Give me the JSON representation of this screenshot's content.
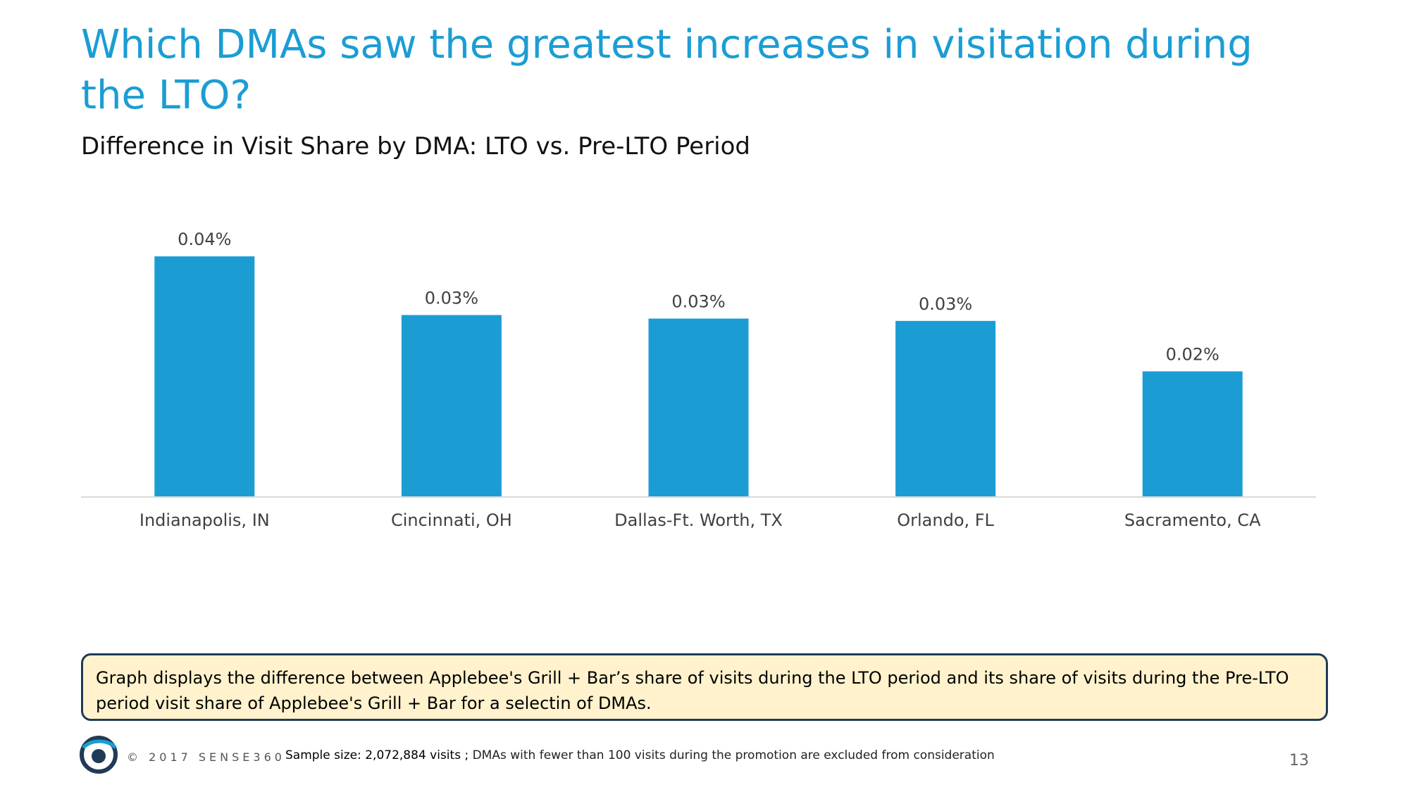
{
  "slide": {
    "title": "Which DMAs saw the greatest increases in visitation during the LTO?",
    "subtitle": "Difference in Visit Share by DMA: LTO vs. Pre-LTO Period",
    "note": "Graph displays the difference between Applebee's Grill + Bar’s share of visits during the LTO period and its share of visits during the Pre-LTO period visit share of Applebee's Grill + Bar for a selectin of DMAs.",
    "copyright": "© 2017 SENSE360",
    "sample_prefix": "Sample size: 2,072,884 visits ;",
    "sample_rest": " DMAs with fewer than 100 visits during the promotion are excluded from consideration",
    "page_number": "13"
  },
  "chart_data": {
    "type": "bar",
    "categories": [
      "Indianapolis, IN",
      "Cincinnati, OH",
      "Dallas-Ft. Worth, TX",
      "Orlando, FL",
      "Sacramento, CA"
    ],
    "values": [
      0.0409,
      0.0309,
      0.0303,
      0.0299,
      0.0213
    ],
    "data_labels": [
      "0.04%",
      "0.03%",
      "0.03%",
      "0.03%",
      "0.02%"
    ],
    "ylim": [
      0,
      0.045
    ],
    "grid": false,
    "bar_color": "#1b9dd4"
  },
  "colors": {
    "accent": "#1b9dd4",
    "note_background": "#fff2cc",
    "note_border": "#1f3b57"
  }
}
